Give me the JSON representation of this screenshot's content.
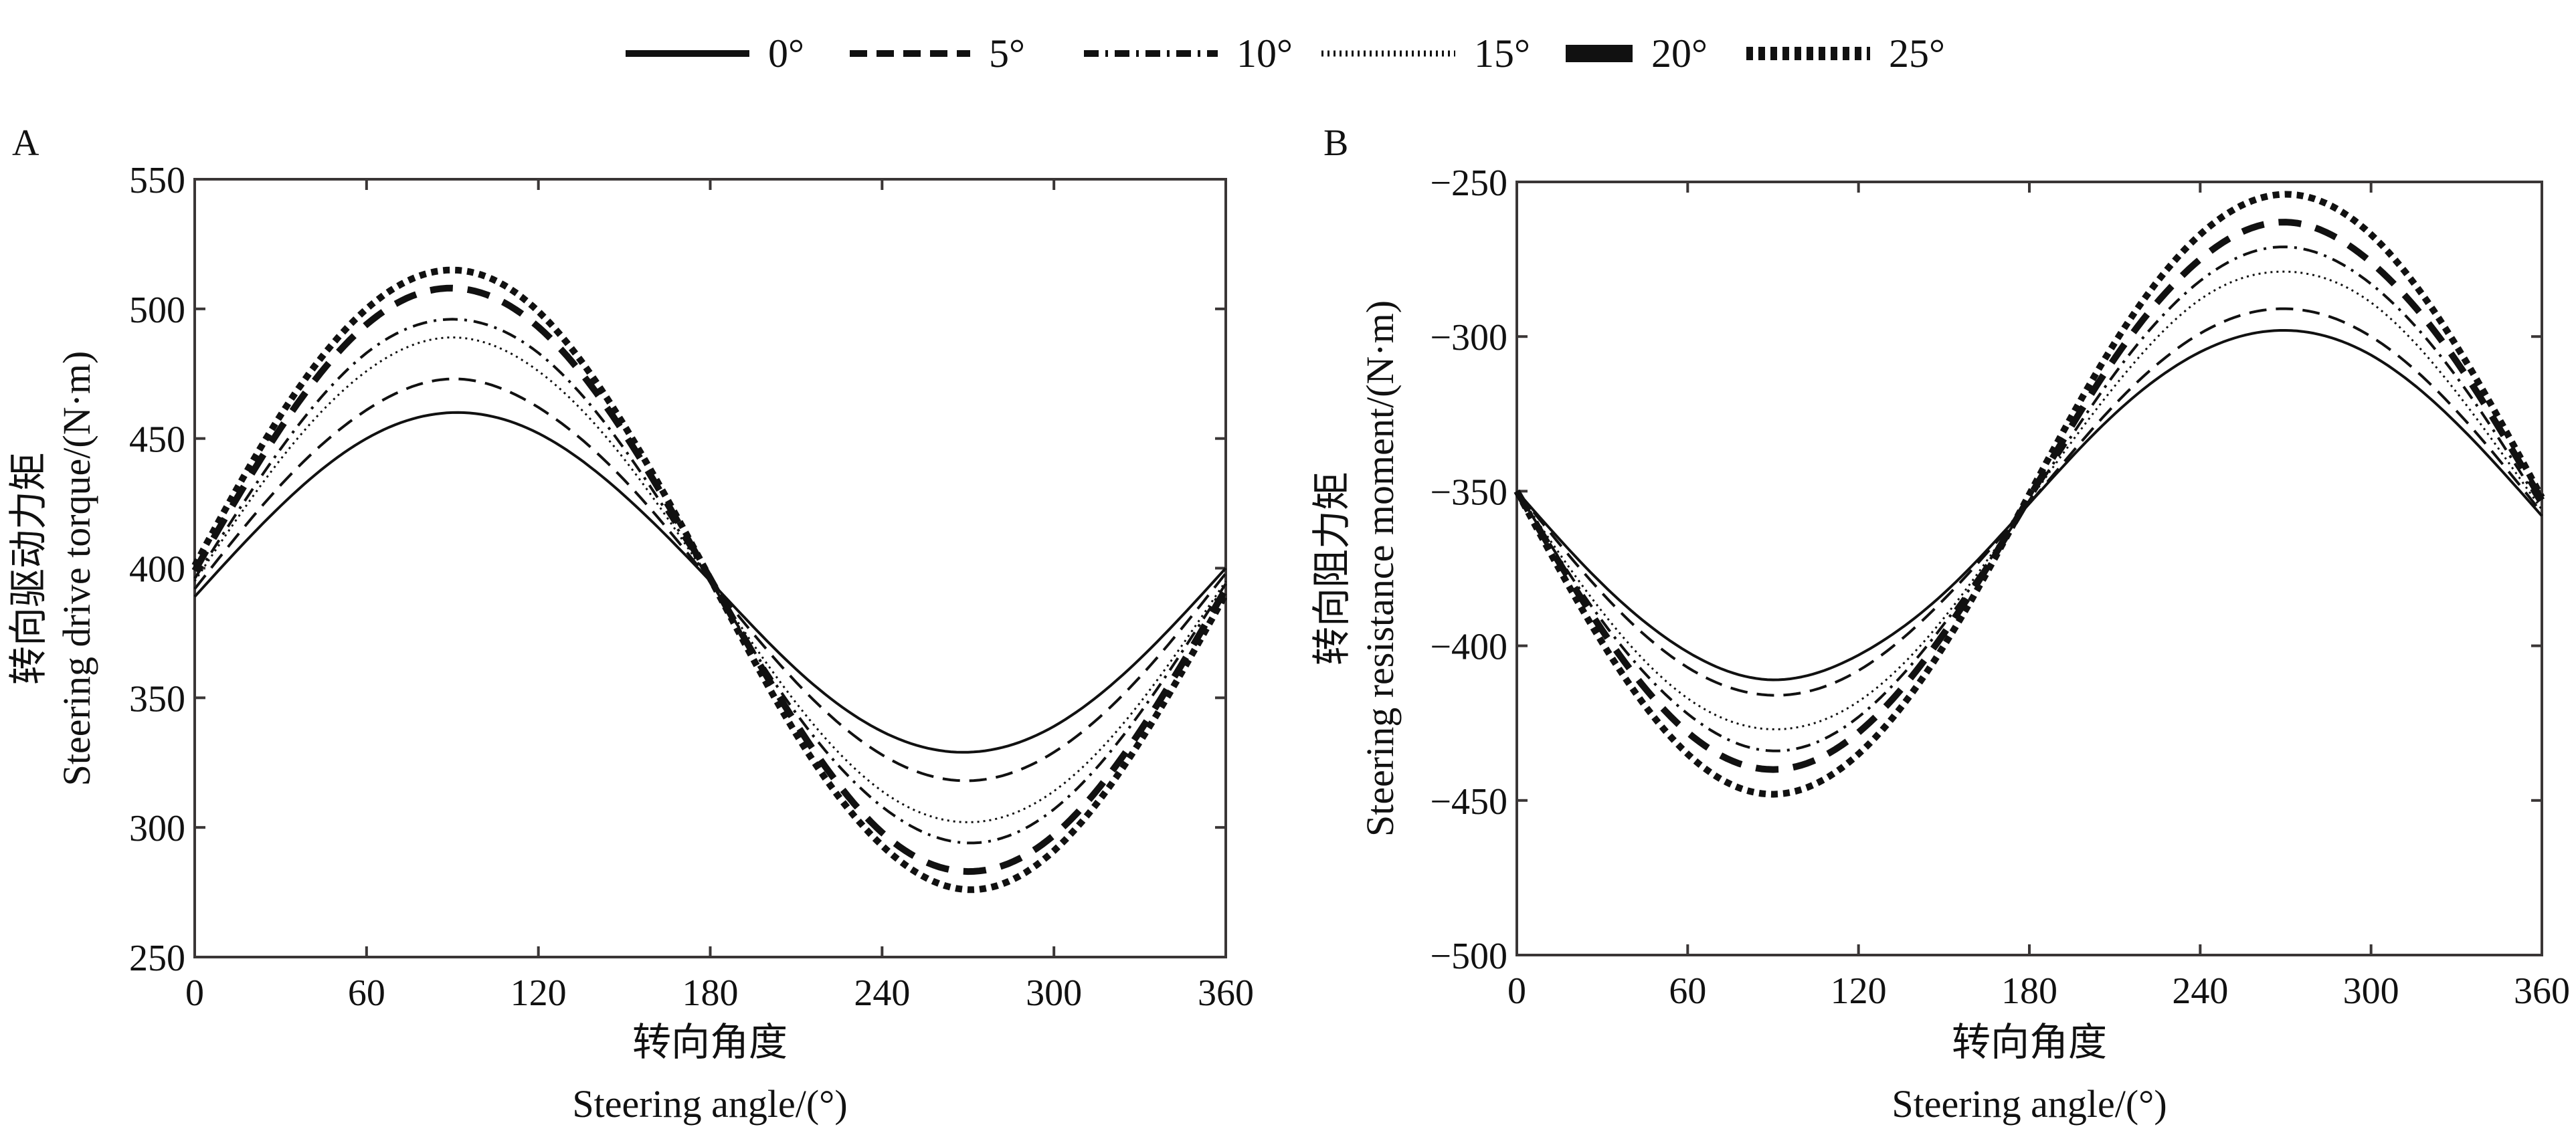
{
  "legend": {
    "items": [
      {
        "label": "0°",
        "style": "solid"
      },
      {
        "label": "5°",
        "style": "dashed"
      },
      {
        "label": "10°",
        "style": "dashdot"
      },
      {
        "label": "15°",
        "style": "dotted"
      },
      {
        "label": "20°",
        "style": "thick-dashed"
      },
      {
        "label": "25°",
        "style": "thick-dotted"
      }
    ]
  },
  "chart_data": [
    {
      "panel": "A",
      "type": "line",
      "title": "",
      "ylabel_cn": "转向驱动力矩",
      "ylabel": "Steering drive torque/(N·m)",
      "xlabel_cn": "转向角度",
      "xlabel": "Steering angle/(°)",
      "xlim": [
        0,
        360
      ],
      "ylim": [
        250,
        550
      ],
      "xticks": [
        0,
        60,
        120,
        180,
        240,
        300,
        360
      ],
      "yticks": [
        250,
        300,
        350,
        400,
        450,
        500,
        550
      ],
      "grid": false,
      "legend_position": "top-center",
      "x": [
        0,
        30,
        60,
        90,
        120,
        150,
        180,
        210,
        240,
        270,
        300,
        330,
        360
      ],
      "series": [
        {
          "name": "0°",
          "values": [
            389,
            424,
            450,
            460,
            452,
            428,
            395,
            361,
            337,
            329,
            339,
            365,
            400
          ]
        },
        {
          "name": "5°",
          "values": [
            392,
            432,
            461,
            473,
            462,
            434,
            395,
            356,
            328,
            318,
            329,
            358,
            398
          ]
        },
        {
          "name": "10°",
          "values": [
            396,
            446,
            483,
            496,
            483,
            446,
            395,
            344,
            308,
            294,
            307,
            344,
            394
          ]
        },
        {
          "name": "15°",
          "values": [
            395,
            442,
            476,
            489,
            476,
            442,
            395,
            348,
            314,
            302,
            314,
            348,
            395
          ]
        },
        {
          "name": "20°",
          "values": [
            399,
            454,
            494,
            508,
            493,
            452,
            396,
            340,
            298,
            283,
            297,
            337,
            392
          ]
        },
        {
          "name": "25°",
          "values": [
            401,
            459,
            500,
            515,
            499,
            455,
            396,
            336,
            293,
            276,
            291,
            333,
            390
          ]
        }
      ]
    },
    {
      "panel": "B",
      "type": "line",
      "title": "",
      "ylabel_cn": "转向阻力矩",
      "ylabel": "Steering resistance moment/(N·m)",
      "xlabel_cn": "转向角度",
      "xlabel": "Steering angle/(°)",
      "xlim": [
        0,
        360
      ],
      "ylim": [
        -500,
        -250
      ],
      "xticks": [
        0,
        60,
        120,
        180,
        240,
        300,
        360
      ],
      "yticks": [
        -500,
        -450,
        -400,
        -350,
        -300,
        -250
      ],
      "grid": false,
      "legend_position": "top-center",
      "x": [
        0,
        30,
        60,
        90,
        120,
        150,
        180,
        210,
        240,
        270,
        300,
        330,
        360
      ],
      "series": [
        {
          "name": "0°",
          "values": [
            -350,
            -380,
            -402,
            -411,
            -403,
            -383,
            -354,
            -325,
            -305,
            -298,
            -306,
            -328,
            -358
          ]
        },
        {
          "name": "5°",
          "values": [
            -350,
            -383,
            -407,
            -416,
            -408,
            -385,
            -354,
            -322,
            -299,
            -291,
            -300,
            -324,
            -357
          ]
        },
        {
          "name": "10°",
          "values": [
            -350,
            -392,
            -422,
            -434,
            -423,
            -393,
            -353,
            -312,
            -282,
            -271,
            -283,
            -313,
            -355
          ]
        },
        {
          "name": "15°",
          "values": [
            -350,
            -389,
            -417,
            -427,
            -418,
            -391,
            -353,
            -316,
            -288,
            -279,
            -289,
            -318,
            -356
          ]
        },
        {
          "name": "20°",
          "values": [
            -350,
            -395,
            -428,
            -440,
            -428,
            -396,
            -352,
            -307,
            -275,
            -263,
            -276,
            -308,
            -353
          ]
        },
        {
          "name": "25°",
          "values": [
            -350,
            -399,
            -435,
            -448,
            -435,
            -400,
            -351,
            -302,
            -267,
            -254,
            -267,
            -303,
            -352
          ]
        }
      ]
    }
  ]
}
